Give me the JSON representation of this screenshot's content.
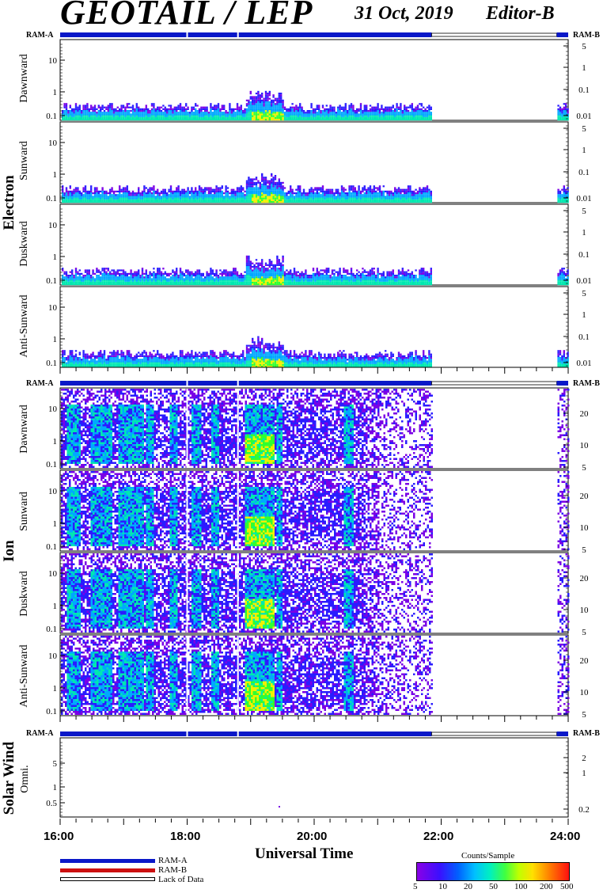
{
  "header": {
    "title": "GEOTAIL / LEP",
    "date": "31 Oct, 2019",
    "editor": "Editor-B"
  },
  "ram": {
    "a": "RAM-A",
    "b": "RAM-B"
  },
  "groups": [
    {
      "name": "Electron",
      "panels": [
        "Dawnward",
        "Sunward",
        "Duskward",
        "Anti-Sunward"
      ]
    },
    {
      "name": "Ion",
      "panels": [
        "Dawnward",
        "Sunward",
        "Duskward",
        "Anti-Sunward"
      ]
    },
    {
      "name": "Solar Wind",
      "panels": [
        "Omni."
      ]
    }
  ],
  "legend": {
    "ram_a": "RAM-A",
    "ram_b": "RAM-B",
    "lack": "Lack of Data",
    "ram_a_color": "#0a18c8",
    "ram_b_color": "#cc1010"
  },
  "colorbar": {
    "title": "Counts/Sample",
    "ticks": [
      "5",
      "10",
      "20",
      "50",
      "100",
      "200",
      "500"
    ]
  },
  "chart_data": {
    "type": "heatmap",
    "title": "GEOTAIL / LEP",
    "xlabel": "Universal Time",
    "x_ticks": [
      "16:00",
      "18:00",
      "20:00",
      "22:00",
      "24:00"
    ],
    "x_range_hours": [
      16,
      24
    ],
    "data_coverage_hours": [
      [
        16.0,
        21.85
      ],
      [
        23.82,
        24.0
      ]
    ],
    "ram_status": [
      {
        "from": 16.0,
        "to": 21.85,
        "mode": "RAM-A"
      },
      {
        "from": 21.85,
        "to": 23.82,
        "mode": "Lack of Data"
      },
      {
        "from": 23.82,
        "to": 24.0,
        "mode": "RAM-A"
      }
    ],
    "electron": {
      "panels": [
        "Dawnward",
        "Sunward",
        "Duskward",
        "Anti-Sunward"
      ],
      "left_ticks": [
        "10",
        "1",
        "0.1"
      ],
      "right_ticks": [
        "5",
        "1",
        "0.1",
        "0.01"
      ],
      "scale": "log"
    },
    "ion": {
      "panels": [
        "Dawnward",
        "Sunward",
        "Duskward",
        "Anti-Sunward"
      ],
      "left_ticks": [
        "10",
        "1",
        "0.1"
      ],
      "right_ticks": [
        "20",
        "10",
        "5"
      ],
      "scale": "log"
    },
    "solar_wind": {
      "panels": [
        "Omni."
      ],
      "left_ticks": [
        "5",
        "1",
        "0.5"
      ],
      "right_ticks": [
        "2",
        "1",
        "0.2"
      ],
      "scale": "log"
    },
    "colorbar": {
      "label": "Counts/Sample",
      "ticks": [
        5,
        10,
        20,
        50,
        100,
        200,
        500
      ],
      "colors": [
        "#7a00e6",
        "#2a1cff",
        "#00a8ff",
        "#00e8b0",
        "#30ff30",
        "#f0f000",
        "#ff7a00",
        "#ff1010"
      ]
    }
  }
}
